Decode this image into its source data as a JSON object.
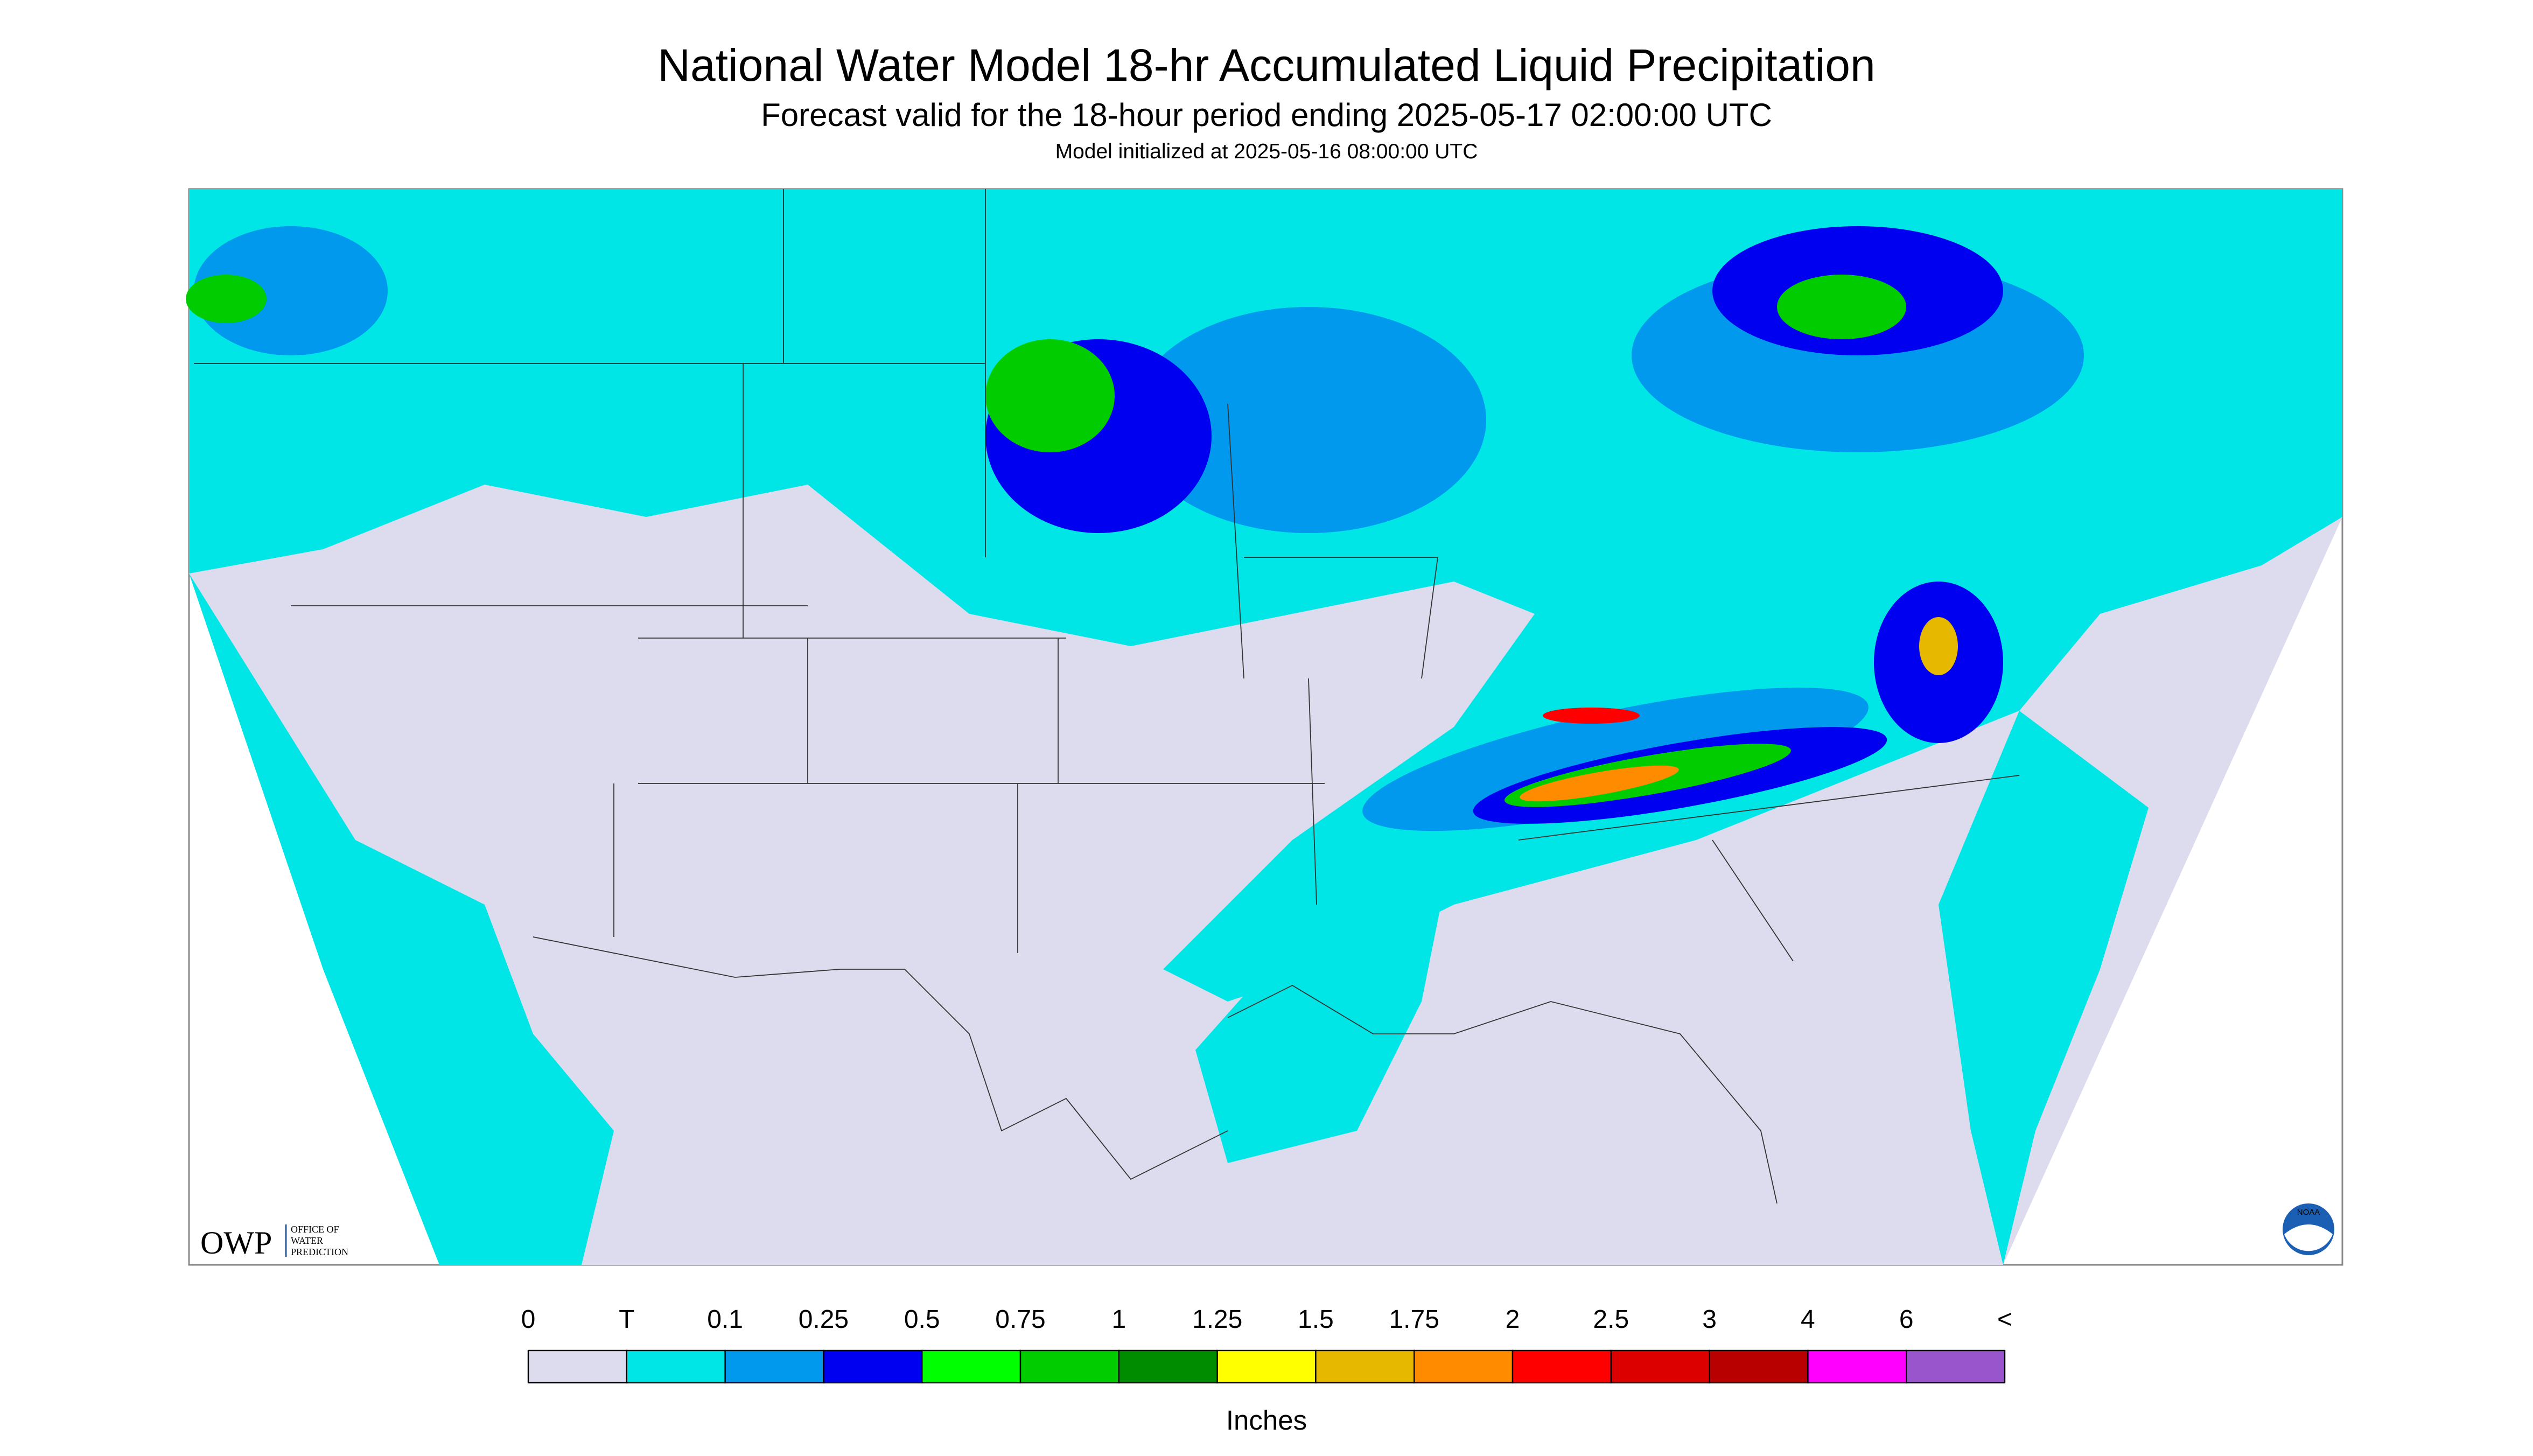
{
  "header": {
    "title": "National Water Model 18-hr Accumulated Liquid Precipitation",
    "subtitle": "Forecast valid for the 18-hour period ending 2025-05-17 02:00:00 UTC",
    "init": "Model initialized at 2025-05-16 08:00:00 UTC"
  },
  "legend": {
    "labels": [
      "0",
      "T",
      "0.1",
      "0.25",
      "0.5",
      "0.75",
      "1",
      "1.25",
      "1.5",
      "1.75",
      "2",
      "2.5",
      "3",
      "4",
      "6",
      "<"
    ],
    "colors": [
      "#dcdcee",
      "#00e6e6",
      "#0099ee",
      "#0000f0",
      "#00ff00",
      "#00cc00",
      "#008c00",
      "#ffff00",
      "#e6b800",
      "#ff8c00",
      "#ff0000",
      "#dd0000",
      "#b80000",
      "#ff00ff",
      "#9955cc"
    ],
    "unit": "Inches"
  },
  "logo": {
    "owp": "OWP",
    "office": [
      "OFFICE OF",
      "WATER",
      "PREDICTION"
    ],
    "noaa": "NOAA"
  }
}
